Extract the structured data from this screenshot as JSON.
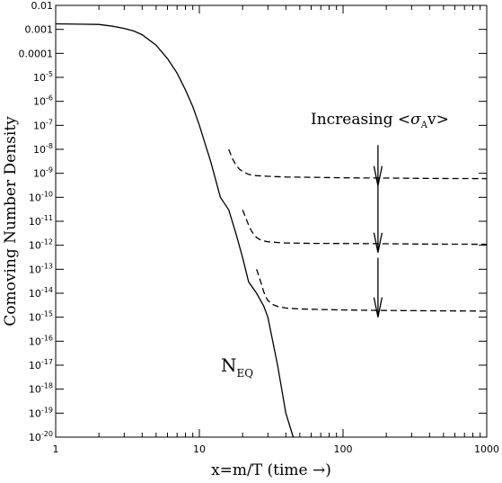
{
  "chart_data": {
    "type": "line",
    "xlabel": "x=m/T (time →)",
    "ylabel": "Comoving Number Density",
    "xscale": "log",
    "yscale": "log",
    "xlim": [
      1,
      1000
    ],
    "ylim": [
      1e-20,
      0.01
    ],
    "x_tick_labels": [
      {
        "value": 1,
        "label": "1"
      },
      {
        "value": 10,
        "label": "10"
      },
      {
        "value": 100,
        "label": "100"
      },
      {
        "value": 1000,
        "label": "1000"
      }
    ],
    "y_tick_labels": [
      {
        "exp": -2,
        "base": "0.01",
        "sup": ""
      },
      {
        "exp": -3,
        "base": "0.001",
        "sup": ""
      },
      {
        "exp": -4,
        "base": "0.0001",
        "sup": ""
      },
      {
        "exp": -5,
        "base": "10",
        "sup": "-5"
      },
      {
        "exp": -6,
        "base": "10",
        "sup": "-6"
      },
      {
        "exp": -7,
        "base": "10",
        "sup": "-7"
      },
      {
        "exp": -8,
        "base": "10",
        "sup": "-8"
      },
      {
        "exp": -9,
        "base": "10",
        "sup": "-9"
      },
      {
        "exp": -10,
        "base": "10",
        "sup": "-10"
      },
      {
        "exp": -11,
        "base": "10",
        "sup": "-11"
      },
      {
        "exp": -12,
        "base": "10",
        "sup": "-12"
      },
      {
        "exp": -13,
        "base": "10",
        "sup": "-13"
      },
      {
        "exp": -14,
        "base": "10",
        "sup": "-14"
      },
      {
        "exp": -15,
        "base": "10",
        "sup": "-15"
      },
      {
        "exp": -16,
        "base": "10",
        "sup": "-16"
      },
      {
        "exp": -17,
        "base": "10",
        "sup": "-17"
      },
      {
        "exp": -18,
        "base": "10",
        "sup": "-18"
      },
      {
        "exp": -19,
        "base": "10",
        "sup": "-19"
      },
      {
        "exp": -20,
        "base": "10",
        "sup": "-20"
      }
    ],
    "series": [
      {
        "style": "solid",
        "x": [
          1,
          1.5,
          2,
          2.5,
          3,
          3.5,
          4,
          5,
          6,
          7,
          8,
          9,
          10,
          12,
          14,
          16,
          18,
          20,
          22,
          25,
          28,
          30,
          35,
          40,
          45
        ],
        "y": [
          0.0017,
          0.00165,
          0.0016,
          0.00135,
          0.0011,
          0.00085,
          0.0006,
          0.00022,
          6e-05,
          1.5e-05,
          3e-06,
          6e-07,
          1e-07,
          3e-09,
          1e-10,
          3e-11,
          3e-12,
          3e-13,
          3e-14,
          1e-14,
          3e-15,
          1e-15,
          1e-17,
          1e-19,
          1e-20
        ]
      },
      {
        "style": "dashed",
        "x": [
          16,
          17,
          18,
          19,
          20,
          22,
          25,
          30,
          40,
          60,
          100,
          200,
          400,
          1000
        ],
        "y": [
          1e-08,
          4e-09,
          2.2e-09,
          1.5e-09,
          1.2e-09,
          9e-10,
          8e-10,
          7.5e-10,
          7e-10,
          6.8e-10,
          6.5e-10,
          6.3e-10,
          6.1e-10,
          6e-10
        ]
      },
      {
        "style": "dashed",
        "x": [
          20,
          21,
          22,
          23,
          24,
          25,
          27,
          30,
          35,
          40,
          60,
          100,
          200,
          400,
          1000
        ],
        "y": [
          3e-11,
          1.4e-11,
          7e-12,
          4e-12,
          2.8e-12,
          2.1e-12,
          1.6e-12,
          1.4e-12,
          1.3e-12,
          1.25e-12,
          1.2e-12,
          1.18e-12,
          1.15e-12,
          1.12e-12,
          1.1e-12
        ]
      },
      {
        "style": "dashed",
        "x": [
          25,
          26,
          27,
          28,
          29,
          30,
          32,
          35,
          40,
          50,
          70,
          100,
          200,
          400,
          1000
        ],
        "y": [
          1e-13,
          5e-14,
          2.5e-14,
          1.2e-14,
          7e-15,
          5e-15,
          3.5e-15,
          2.8e-15,
          2.4e-15,
          2.2e-15,
          2.1e-15,
          2e-15,
          1.9e-15,
          1.85e-15,
          1.8e-15
        ]
      }
    ],
    "annotations": {
      "increasing_prefix": "Increasing <",
      "sigma": "σ",
      "sigma_sub": "A",
      "increasing_suffix": "v>",
      "neq_main": "N",
      "neq_sub": "EQ"
    },
    "arrows": [
      {
        "x": 175,
        "y_top": 1.5e-08,
        "y_bottom": 3e-10
      },
      {
        "x": 175,
        "y_top": 3e-10,
        "y_bottom": 5e-13
      },
      {
        "x": 175,
        "y_top": 3e-13,
        "y_bottom": 1e-15
      }
    ]
  }
}
